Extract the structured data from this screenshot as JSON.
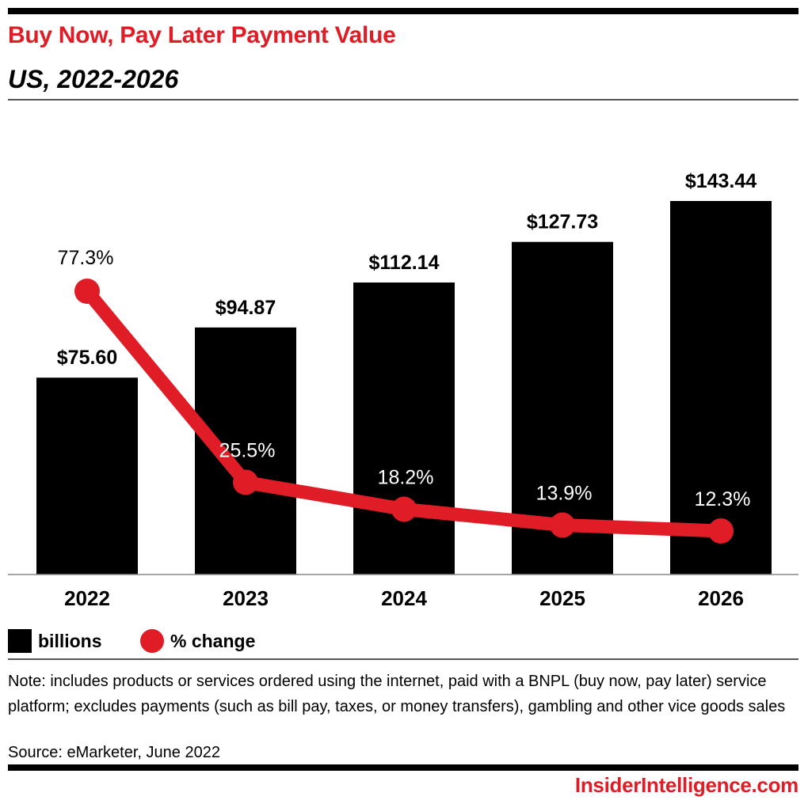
{
  "header": {
    "title": "Buy Now, Pay Later Payment Value",
    "subtitle": "US, 2022-2026"
  },
  "chart_data": {
    "type": "bar",
    "categories": [
      "2022",
      "2023",
      "2024",
      "2025",
      "2026"
    ],
    "series": [
      {
        "name": "billions",
        "type": "bar",
        "values": [
          75.6,
          94.87,
          112.14,
          127.73,
          143.44
        ],
        "labels": [
          "$75.60",
          "$94.87",
          "$112.14",
          "$127.73",
          "$143.44"
        ],
        "color": "#000000"
      },
      {
        "name": "% change",
        "type": "line",
        "values": [
          77.3,
          25.5,
          18.2,
          13.9,
          12.3
        ],
        "labels": [
          "77.3%",
          "25.5%",
          "18.2%",
          "13.9%",
          "12.3%"
        ],
        "color": "#e01c26"
      }
    ],
    "grid": false,
    "legend": "bottom-left"
  },
  "legend": {
    "bars_label": "billions",
    "line_label": "% change"
  },
  "footer": {
    "note": "Note: includes products or services ordered using the internet, paid with a BNPL (buy now, pay later) service platform; excludes payments (such as bill pay, taxes, or money transfers), gambling and other vice goods sales",
    "source": "Source: eMarketer, June 2022",
    "brand": "InsiderIntelligence.com"
  }
}
